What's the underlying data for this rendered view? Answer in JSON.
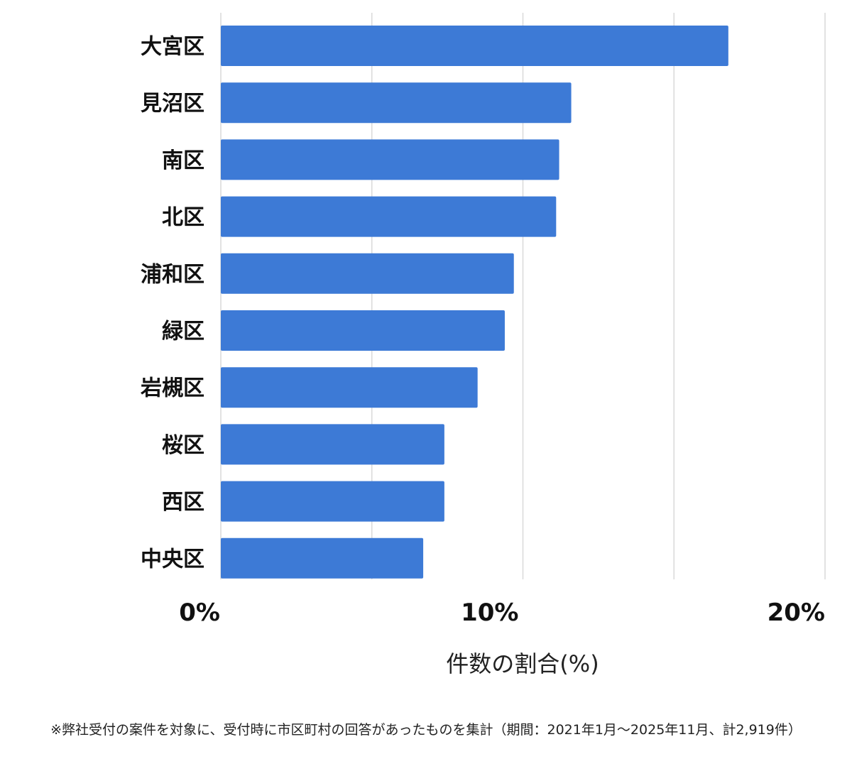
{
  "chart_data": {
    "type": "bar",
    "orientation": "horizontal",
    "categories": [
      "大宮区",
      "見沼区",
      "南区",
      "北区",
      "浦和区",
      "緑区",
      "岩槻区",
      "桜区",
      "西区",
      "中央区"
    ],
    "values": [
      16.8,
      11.6,
      11.2,
      11.1,
      9.7,
      9.4,
      8.5,
      7.4,
      7.4,
      6.7
    ],
    "xlim": [
      0,
      20
    ],
    "x_ticks": [
      "0%",
      "10%",
      "20%"
    ],
    "xlabel": "件数の割合(%)",
    "ylabel": "",
    "grid": true,
    "bar_color": "#3d7ad6"
  },
  "footnote": "※弊社受付の案件を対象に、受付時に市区町村の回答があったものを集計（期間：2021年1月〜2025年11月、計2,919件）"
}
